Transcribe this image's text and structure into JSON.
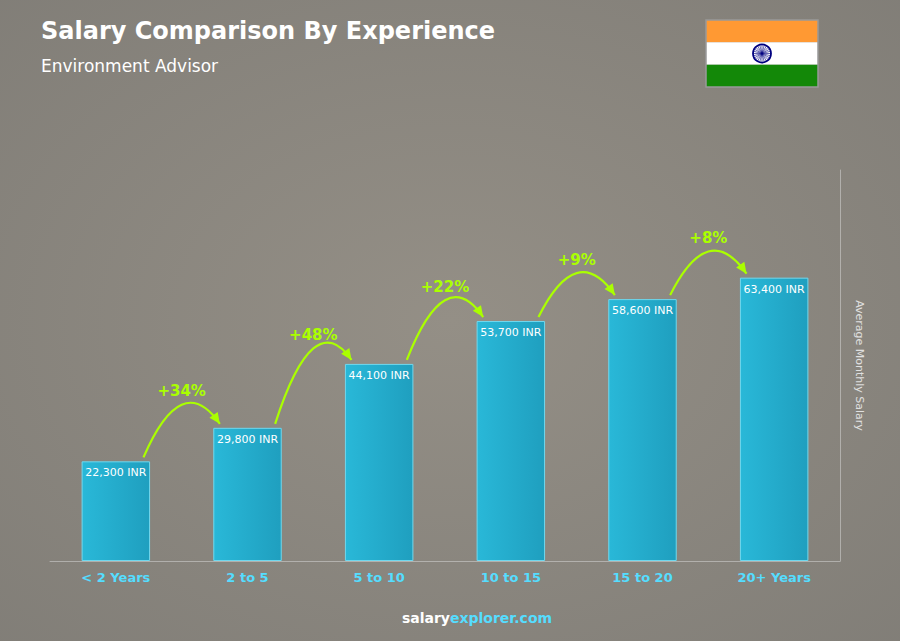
{
  "chart_data": {
    "type": "bar",
    "title": "Salary Comparison By Experience",
    "subtitle": "Environment Advisor",
    "categories": [
      "< 2 Years",
      "2 to 5",
      "5 to 10",
      "10 to 15",
      "15 to 20",
      "20+ Years"
    ],
    "values": [
      22300,
      29800,
      44100,
      53700,
      58600,
      63400
    ],
    "value_labels": [
      "22,300 INR",
      "29,800 INR",
      "44,100 INR",
      "53,700 INR",
      "58,600 INR",
      "63,400 INR"
    ],
    "data_labels": true,
    "color": "#29b8d8",
    "ylabel": "Average Monthly Salary",
    "ylim": [
      0,
      87492
    ],
    "tick_labels": "x",
    "grid": false,
    "annotations": [
      "+34%",
      "+48%",
      "+22%",
      "+9%",
      "+8%"
    ],
    "footer": [
      "salary",
      "explorer.com"
    ]
  }
}
